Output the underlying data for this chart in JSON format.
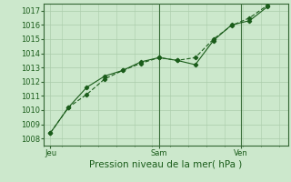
{
  "background_color": "#cce8cc",
  "grid_color": "#aaccaa",
  "line_color": "#1a5c1a",
  "title": "Pression niveau de la mer( hPa )",
  "ylim": [
    1007.5,
    1017.5
  ],
  "yticks": [
    1008,
    1009,
    1010,
    1011,
    1012,
    1013,
    1014,
    1015,
    1016,
    1017
  ],
  "xlim": [
    0,
    108
  ],
  "xtick_positions": [
    3,
    51,
    87
  ],
  "xlabel_labels": [
    "Jeu",
    "Sam",
    "Ven"
  ],
  "series1_x": [
    3,
    11,
    19,
    27,
    35,
    43,
    51,
    59,
    67,
    75,
    83,
    91,
    99
  ],
  "series1_y": [
    1008.4,
    1010.2,
    1011.6,
    1012.4,
    1012.8,
    1013.4,
    1013.7,
    1013.5,
    1013.2,
    1014.9,
    1016.0,
    1016.3,
    1017.3
  ],
  "series2_x": [
    3,
    11,
    19,
    27,
    35,
    43,
    51,
    59,
    67,
    75,
    83,
    91,
    99
  ],
  "series2_y": [
    1008.4,
    1010.2,
    1011.1,
    1012.2,
    1012.8,
    1013.3,
    1013.7,
    1013.5,
    1013.7,
    1015.0,
    1015.95,
    1016.5,
    1017.4
  ],
  "vline_positions": [
    51,
    87
  ],
  "tick_fontsize": 6,
  "label_fontsize": 7.5
}
